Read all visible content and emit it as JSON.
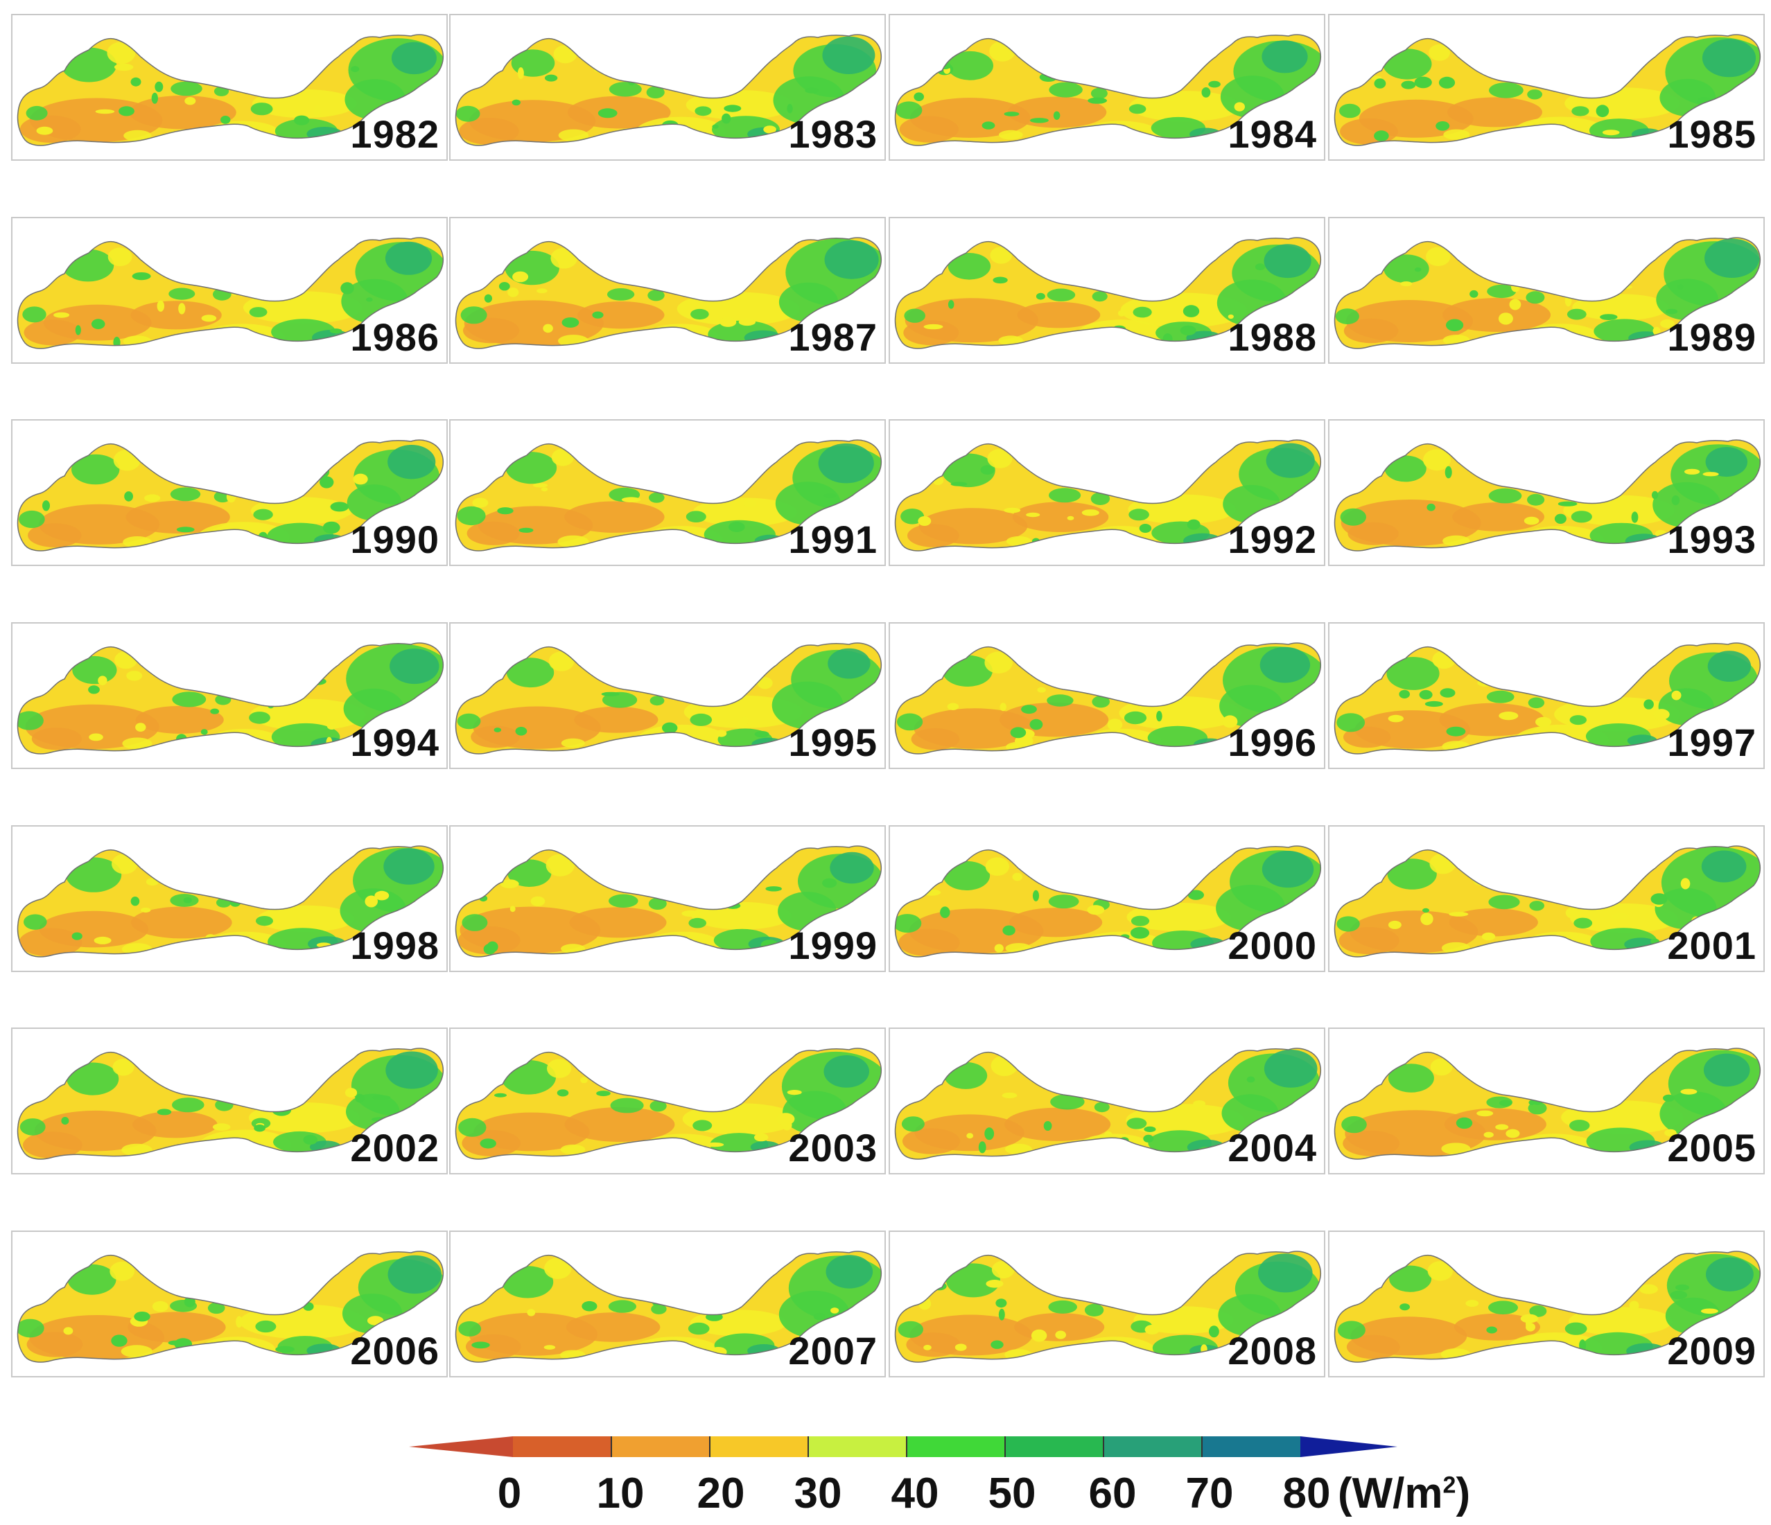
{
  "figure": {
    "panels": [
      {
        "year": "1982"
      },
      {
        "year": "1983"
      },
      {
        "year": "1984"
      },
      {
        "year": "1985"
      },
      {
        "year": "1986"
      },
      {
        "year": "1987"
      },
      {
        "year": "1988"
      },
      {
        "year": "1989"
      },
      {
        "year": "1990"
      },
      {
        "year": "1991"
      },
      {
        "year": "1992"
      },
      {
        "year": "1993"
      },
      {
        "year": "1994"
      },
      {
        "year": "1995"
      },
      {
        "year": "1996"
      },
      {
        "year": "1997"
      },
      {
        "year": "1998"
      },
      {
        "year": "1999"
      },
      {
        "year": "2000"
      },
      {
        "year": "2001"
      },
      {
        "year": "2002"
      },
      {
        "year": "2003"
      },
      {
        "year": "2004"
      },
      {
        "year": "2005"
      },
      {
        "year": "2006"
      },
      {
        "year": "2007"
      },
      {
        "year": "2008"
      },
      {
        "year": "2009"
      }
    ],
    "columns": 4
  },
  "colorbar": {
    "ticks": [
      "0",
      "10",
      "20",
      "30",
      "40",
      "50",
      "60",
      "70",
      "80"
    ],
    "unit_prefix": "(W/m",
    "unit_sup": "2",
    "unit_suffix": ")",
    "colors": [
      "#d8602a",
      "#f0a030",
      "#f7c828",
      "#c8f040",
      "#40d838",
      "#28b850",
      "#28a078",
      "#187890",
      "#182080"
    ],
    "under_color": "#c84a30",
    "over_color": "#101e9a"
  },
  "map_colors": {
    "low": "#f0a030",
    "mid": "#f7d92a",
    "yellow": "#f4ee28",
    "high": "#48d040",
    "higher": "#2cb46a",
    "outline": "#707070"
  }
}
